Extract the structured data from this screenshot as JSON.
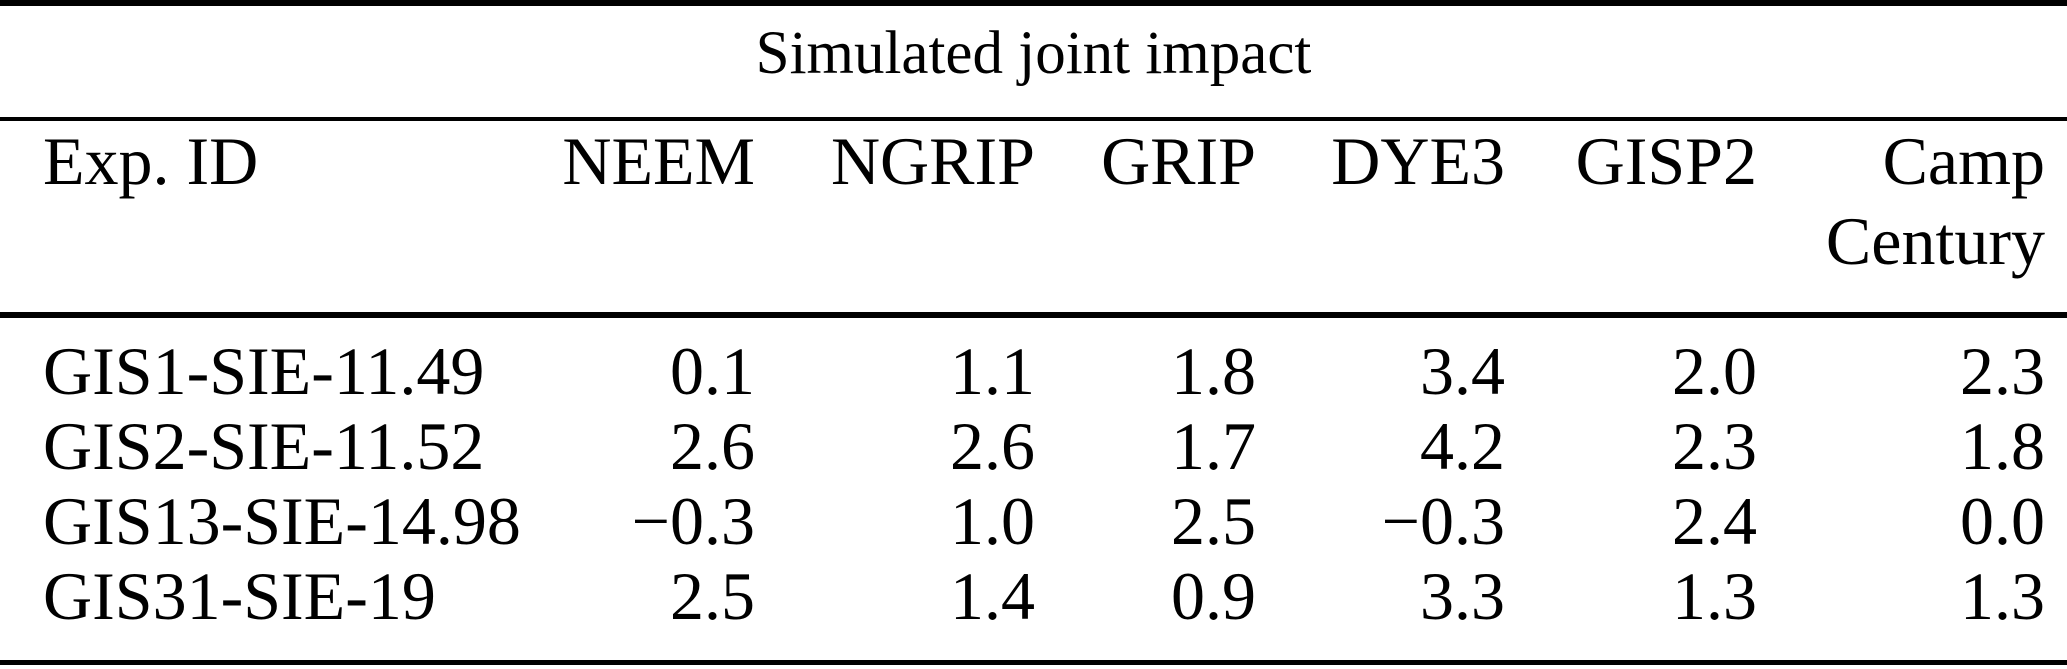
{
  "colors": {
    "background": "#ffffff",
    "text": "#000000",
    "rule": "#000000"
  },
  "table": {
    "title": "Simulated joint impact",
    "columns": [
      {
        "label": "Exp. ID"
      },
      {
        "label": "NEEM"
      },
      {
        "label": "NGRIP"
      },
      {
        "label": "GRIP"
      },
      {
        "label": "DYE3"
      },
      {
        "label": "GISP2"
      },
      {
        "label": "Camp",
        "label_line2": "Century"
      }
    ],
    "rows": [
      {
        "id": "GIS1-SIE-11.49",
        "values": [
          "0.1",
          "1.1",
          "1.8",
          "3.4",
          "2.0",
          "2.3"
        ]
      },
      {
        "id": "GIS2-SIE-11.52",
        "values": [
          "2.6",
          "2.6",
          "1.7",
          "4.2",
          "2.3",
          "1.8"
        ]
      },
      {
        "id": "GIS13-SIE-14.98",
        "values": [
          "−0.3",
          "1.0",
          "2.5",
          "−0.3",
          "2.4",
          "0.0"
        ]
      },
      {
        "id": "GIS31-SIE-19",
        "values": [
          "2.5",
          "1.4",
          "0.9",
          "3.3",
          "1.3",
          "1.3"
        ]
      }
    ]
  },
  "chart_data": {
    "type": "table",
    "title": "Simulated joint impact",
    "columns": [
      "Exp. ID",
      "NEEM",
      "NGRIP",
      "GRIP",
      "DYE3",
      "GISP2",
      "Camp Century"
    ],
    "rows": [
      [
        "GIS1-SIE-11.49",
        0.1,
        1.1,
        1.8,
        3.4,
        2.0,
        2.3
      ],
      [
        "GIS2-SIE-11.52",
        2.6,
        2.6,
        1.7,
        4.2,
        2.3,
        1.8
      ],
      [
        "GIS13-SIE-14.98",
        -0.3,
        1.0,
        2.5,
        -0.3,
        2.4,
        0.0
      ],
      [
        "GIS31-SIE-19",
        2.5,
        1.4,
        0.9,
        3.3,
        1.3,
        1.3
      ]
    ]
  }
}
